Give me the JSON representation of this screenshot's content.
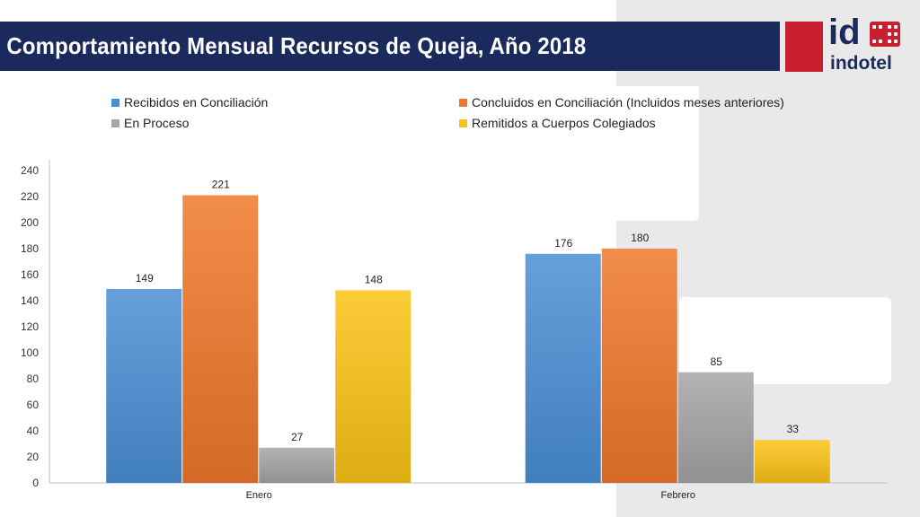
{
  "slide": {
    "title": "Comportamiento Mensual Recursos de Queja, Año 2018"
  },
  "logo": {
    "mark": "id",
    "word": "indotel"
  },
  "colors": {
    "header": "#1a2a5c",
    "brand_red": "#c8202f"
  },
  "chart_data": {
    "type": "bar",
    "categories": [
      "Enero",
      "Febrero"
    ],
    "series": [
      {
        "name": "Recibidos en Conciliación",
        "values": [
          149,
          176
        ],
        "color": "#4a8fd6"
      },
      {
        "name": "Concluidos en Conciliación (Incluidos meses anteriores)",
        "values": [
          221,
          180
        ],
        "color": "#f0782a"
      },
      {
        "name": "En Proceso",
        "values": [
          27,
          85
        ],
        "color": "#a5a5a5"
      },
      {
        "name": "Remitidos a Cuerpos Colegiados",
        "values": [
          148,
          33
        ],
        "color": "#fcc316"
      }
    ],
    "ylim": [
      0,
      240
    ],
    "yticks": [
      "0",
      "20",
      "40",
      "60",
      "80",
      "100",
      "120",
      "140",
      "160",
      "180",
      "200",
      "220",
      "240"
    ],
    "data_labels": true,
    "grid": false,
    "legend_position": "top"
  }
}
